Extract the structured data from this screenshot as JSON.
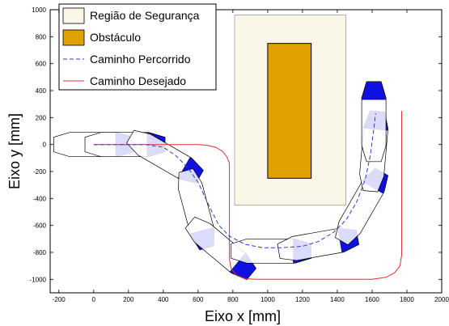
{
  "chart_data": {
    "type": "line",
    "xlabel": "Eixo x [mm]",
    "ylabel": "Eixo y [mm]",
    "xlim": [
      -250,
      2000
    ],
    "ylim": [
      -1100,
      1000
    ],
    "xticks": [
      -200,
      0,
      200,
      400,
      600,
      800,
      1000,
      1200,
      1400,
      1600,
      1800,
      2000
    ],
    "yticks": [
      1000,
      800,
      600,
      400,
      200,
      0,
      -200,
      -400,
      -600,
      -800,
      -1000
    ],
    "grid": false,
    "legend_position": "top-left",
    "legend": [
      {
        "label": "Região de Segurança",
        "kind": "patch",
        "color": "#fbf7e8"
      },
      {
        "label": "Obstáculo",
        "kind": "patch",
        "color": "#e0a000"
      },
      {
        "label": "Caminho Percorrido",
        "kind": "dashed-line",
        "color": "#3333cc"
      },
      {
        "label": "Caminho Desejado",
        "kind": "line",
        "color": "#e03030"
      }
    ],
    "safety_region": {
      "x": [
        810,
        1450
      ],
      "y": [
        -450,
        960
      ],
      "color": "#fbf7e8"
    },
    "obstacle": {
      "x": [
        1000,
        1250
      ],
      "y": [
        -250,
        750
      ],
      "color": "#e0a000"
    },
    "series": [
      {
        "name": "Caminho Desejado",
        "color": "#e03030",
        "style": "solid",
        "x": [
          0,
          600,
          650,
          700,
          740,
          765,
          780,
          780,
          790,
          820,
          870,
          930,
          1000,
          1600,
          1680,
          1730,
          1760,
          1770,
          1770
        ],
        "y": [
          0,
          0,
          -5,
          -20,
          -50,
          -90,
          -140,
          -850,
          -920,
          -970,
          -995,
          -1000,
          -1000,
          -1000,
          -985,
          -950,
          -900,
          -820,
          250
        ]
      },
      {
        "name": "Caminho Percorrido",
        "color": "#3333cc",
        "style": "dashed",
        "x": [
          0,
          150,
          300,
          400,
          470,
          540,
          600,
          640,
          680,
          720,
          780,
          870,
          970,
          1080,
          1200,
          1290,
          1380,
          1450,
          1510,
          1560,
          1590,
          1610,
          1620
        ],
        "y": [
          0,
          0,
          0,
          -20,
          -80,
          -170,
          -280,
          -390,
          -500,
          -600,
          -680,
          -740,
          -765,
          -765,
          -755,
          -720,
          -650,
          -560,
          -430,
          -260,
          -80,
          120,
          230
        ]
      }
    ],
    "robot_poses": [
      {
        "x": 0,
        "y": 0,
        "angle": 0
      },
      {
        "x": 180,
        "y": 0,
        "angle": 0
      },
      {
        "x": 410,
        "y": -90,
        "angle": -30
      },
      {
        "x": 590,
        "y": -480,
        "angle": -75
      },
      {
        "x": 730,
        "y": -770,
        "angle": -40
      },
      {
        "x": 1020,
        "y": -790,
        "angle": 0
      },
      {
        "x": 1290,
        "y": -740,
        "angle": 10
      },
      {
        "x": 1540,
        "y": -460,
        "angle": 60
      },
      {
        "x": 1610,
        "y": -50,
        "angle": 85
      },
      {
        "x": 1610,
        "y": 170,
        "angle": 90
      }
    ]
  }
}
